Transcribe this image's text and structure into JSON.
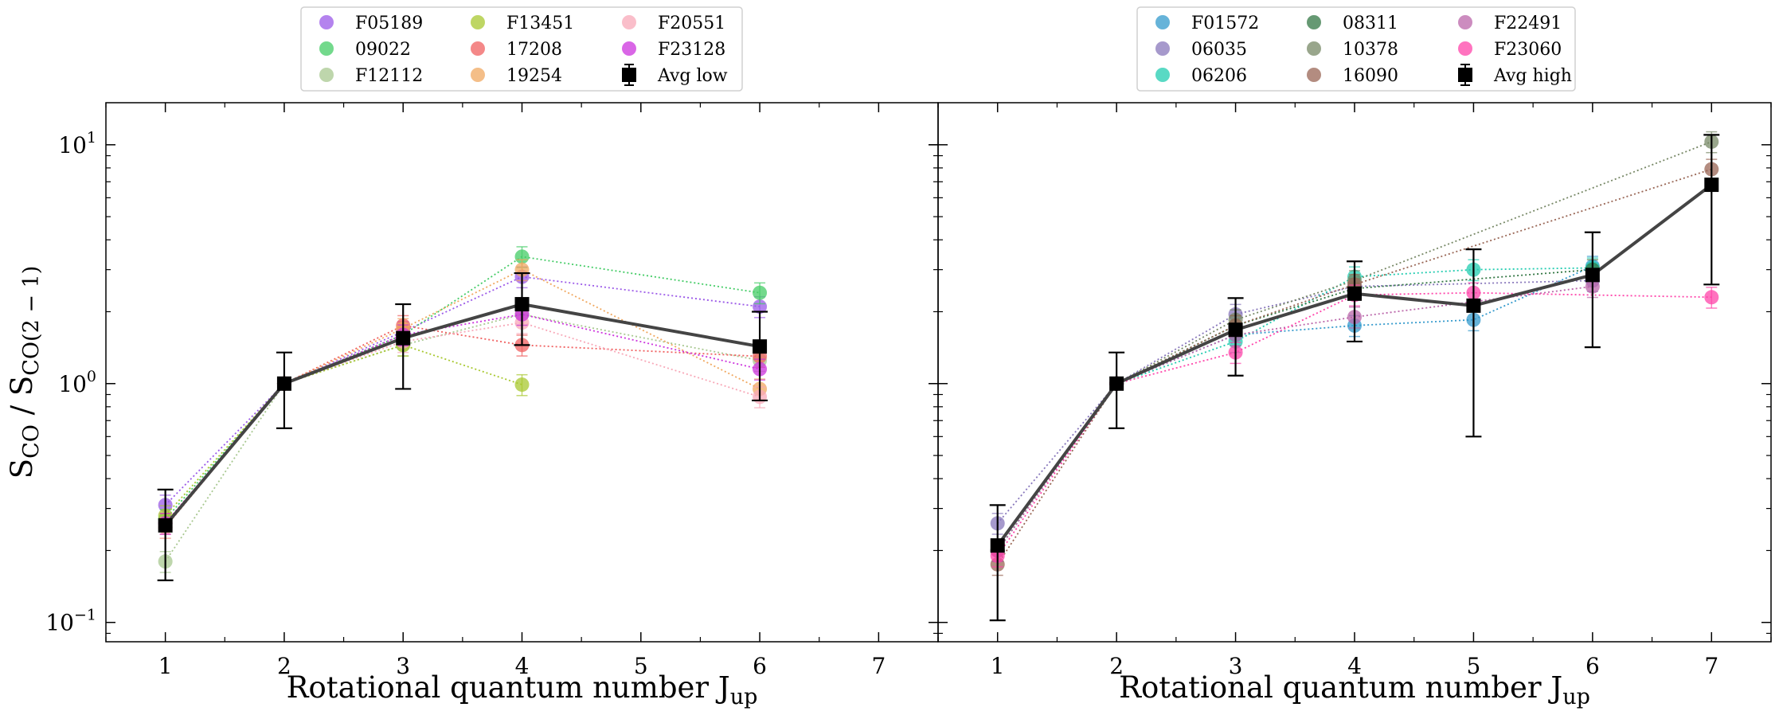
{
  "chart_data": [
    {
      "type": "scatter",
      "panel": "left",
      "xlabel": "Rotational quantum number",
      "xlabel_sub": "up",
      "xlabel_prefix": "J",
      "ylabel": "S",
      "ylabel_sub1": "CO",
      "ylabel_mid": " / S",
      "ylabel_sub2": "CO(2 − 1)",
      "xlim": [
        0.5,
        7.5
      ],
      "ylim": [
        0.083,
        15
      ],
      "yscale": "log",
      "xticks": [
        1,
        2,
        3,
        4,
        5,
        6,
        7
      ],
      "yticks": [
        {
          "base": "10",
          "exp": "−1",
          "value": 0.1
        },
        {
          "base": "10",
          "exp": "0",
          "value": 1
        },
        {
          "base": "10",
          "exp": "1",
          "value": 10
        }
      ],
      "legend_placement": "top-center, outside",
      "series": [
        {
          "name": "F05189",
          "color": "#9b59e8",
          "points": [
            [
              1,
              0.31
            ],
            [
              2,
              1.0
            ],
            [
              3,
              1.65
            ],
            [
              4,
              2.8
            ],
            [
              6,
              2.1
            ]
          ]
        },
        {
          "name": "09022",
          "color": "#44cc66",
          "points": [
            [
              1,
              0.27
            ],
            [
              2,
              1.0
            ],
            [
              3,
              1.6
            ],
            [
              4,
              3.4
            ],
            [
              6,
              2.4
            ]
          ]
        },
        {
          "name": "F12112",
          "color": "#a8c890",
          "points": [
            [
              1,
              0.18
            ],
            [
              2,
              1.0
            ],
            [
              3,
              1.45
            ],
            [
              4,
              1.95
            ],
            [
              6,
              1.25
            ]
          ]
        },
        {
          "name": "F13451",
          "color": "#a8c830",
          "points": [
            [
              1,
              0.28
            ],
            [
              2,
              1.0
            ],
            [
              3,
              1.45
            ],
            [
              4,
              0.99
            ]
          ]
        },
        {
          "name": "17208",
          "color": "#f06060",
          "points": [
            [
              1,
              0.26
            ],
            [
              2,
              1.0
            ],
            [
              3,
              1.75
            ],
            [
              4,
              1.45
            ],
            [
              6,
              1.3
            ]
          ]
        },
        {
          "name": "19254",
          "color": "#f0a860",
          "points": [
            [
              1,
              0.25
            ],
            [
              2,
              1.0
            ],
            [
              3,
              1.7
            ],
            [
              4,
              3.0
            ],
            [
              6,
              0.95
            ]
          ]
        },
        {
          "name": "F20551",
          "color": "#f8a8b8",
          "points": [
            [
              1,
              0.25
            ],
            [
              2,
              1.0
            ],
            [
              3,
              1.5
            ],
            [
              4,
              1.8
            ],
            [
              6,
              0.88
            ]
          ]
        },
        {
          "name": "F23128",
          "color": "#cc33dd",
          "points": [
            [
              1,
              0.26
            ],
            [
              2,
              1.0
            ],
            [
              3,
              1.6
            ],
            [
              4,
              1.95
            ],
            [
              6,
              1.15
            ]
          ]
        }
      ],
      "average": {
        "name": "Avg low",
        "color": "#000000",
        "line_color": "#444444",
        "points": [
          [
            1,
            0.255
          ],
          [
            2,
            1.0
          ],
          [
            3,
            1.55
          ],
          [
            4,
            2.15
          ],
          [
            6,
            1.43
          ]
        ],
        "errors": [
          [
            0.15,
            0.36
          ],
          [
            0.65,
            1.35
          ],
          [
            0.95,
            2.15
          ],
          [
            1.45,
            2.9
          ],
          [
            0.85,
            2.0
          ]
        ]
      }
    },
    {
      "type": "scatter",
      "panel": "right",
      "xlabel": "Rotational quantum number",
      "xlabel_sub": "up",
      "xlabel_prefix": "J",
      "xlim": [
        0.5,
        7.5
      ],
      "ylim": [
        0.083,
        15
      ],
      "yscale": "log",
      "xticks": [
        1,
        2,
        3,
        4,
        5,
        6,
        7
      ],
      "legend_placement": "top-center, outside",
      "series": [
        {
          "name": "F01572",
          "color": "#3399cc",
          "points": [
            [
              1,
              0.2
            ],
            [
              2,
              1.0
            ],
            [
              3,
              1.6
            ],
            [
              4,
              1.75
            ],
            [
              5,
              1.85
            ],
            [
              6,
              3.1
            ]
          ]
        },
        {
          "name": "06035",
          "color": "#8877bb",
          "points": [
            [
              1,
              0.26
            ],
            [
              2,
              1.0
            ],
            [
              3,
              1.95
            ],
            [
              4,
              2.55
            ],
            [
              6,
              2.7
            ]
          ]
        },
        {
          "name": "06206",
          "color": "#22ccb0",
          "points": [
            [
              1,
              0.2
            ],
            [
              2,
              1.0
            ],
            [
              3,
              1.5
            ],
            [
              4,
              2.8
            ],
            [
              5,
              3.0
            ],
            [
              6,
              3.05
            ]
          ]
        },
        {
          "name": "08311",
          "color": "#337744",
          "points": [
            [
              1,
              0.2
            ],
            [
              2,
              1.0
            ],
            [
              3,
              1.75
            ],
            [
              4,
              2.5
            ],
            [
              6,
              3.0
            ]
          ]
        },
        {
          "name": "10378",
          "color": "#778866",
          "points": [
            [
              1,
              0.2
            ],
            [
              2,
              1.0
            ],
            [
              3,
              1.85
            ],
            [
              4,
              2.7
            ],
            [
              7,
              10.3
            ]
          ]
        },
        {
          "name": "16090",
          "color": "#996655",
          "points": [
            [
              1,
              0.175
            ],
            [
              2,
              1.0
            ],
            [
              3,
              1.75
            ],
            [
              4,
              2.6
            ],
            [
              7,
              7.9
            ]
          ]
        },
        {
          "name": "F22491",
          "color": "#bb66aa",
          "points": [
            [
              1,
              0.2
            ],
            [
              2,
              1.0
            ],
            [
              3,
              1.6
            ],
            [
              4,
              1.9
            ],
            [
              6,
              2.55
            ]
          ]
        },
        {
          "name": "F23060",
          "color": "#ff44aa",
          "points": [
            [
              1,
              0.19
            ],
            [
              2,
              1.0
            ],
            [
              3,
              1.35
            ],
            [
              4,
              2.35
            ],
            [
              5,
              2.4
            ],
            [
              7,
              2.3
            ]
          ]
        }
      ],
      "average": {
        "name": "Avg high",
        "color": "#000000",
        "line_color": "#444444",
        "points": [
          [
            1,
            0.21
          ],
          [
            2,
            1.0
          ],
          [
            3,
            1.68
          ],
          [
            4,
            2.38
          ],
          [
            5,
            2.12
          ],
          [
            6,
            2.85
          ],
          [
            7,
            6.8
          ]
        ],
        "errors": [
          [
            0.102,
            0.31
          ],
          [
            0.65,
            1.35
          ],
          [
            1.08,
            2.28
          ],
          [
            1.5,
            3.25
          ],
          [
            0.6,
            3.65
          ],
          [
            1.42,
            4.3
          ],
          [
            2.6,
            11.0
          ]
        ]
      }
    }
  ]
}
